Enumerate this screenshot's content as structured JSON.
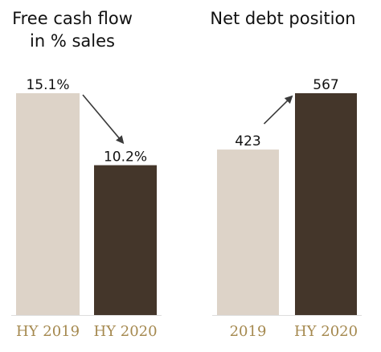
{
  "chart_data": [
    {
      "type": "bar",
      "title_lines": [
        "Free cash flow",
        "in % sales"
      ],
      "categories": [
        "HY 2019",
        "HY 2020"
      ],
      "values": [
        15.1,
        10.2
      ],
      "value_labels": [
        "15.1%",
        "10.2%"
      ],
      "colors": [
        "#ddd3c8",
        "#44362a"
      ],
      "ylim": [
        0,
        15.1
      ],
      "grid": false,
      "trend_arrow": "down"
    },
    {
      "type": "bar",
      "title_lines": [
        "Net debt position"
      ],
      "categories": [
        "2019",
        "HY 2020"
      ],
      "values": [
        423,
        567
      ],
      "value_labels": [
        "423",
        "567"
      ],
      "colors": [
        "#ddd3c8",
        "#44362a"
      ],
      "ylim": [
        0,
        567
      ],
      "grid": false,
      "trend_arrow": "up"
    }
  ],
  "palette": {
    "tick_text": "#a5894f",
    "arrow": "#3a3a3a",
    "axis_line": "#dddddd"
  }
}
